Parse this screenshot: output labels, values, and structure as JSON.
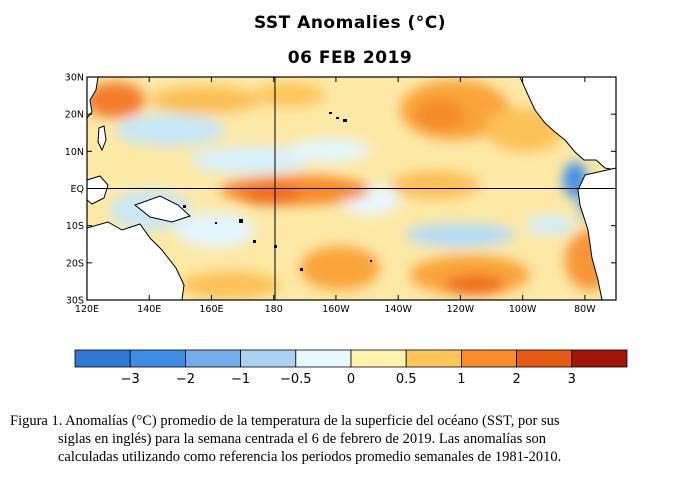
{
  "title": "SST Anomalies (°C)",
  "subtitle": "06 FEB 2019",
  "chart_data": {
    "type": "heatmap",
    "title": "SST Anomalies (°C)",
    "date": "06 FEB 2019",
    "x_ticks": [
      "120E",
      "140E",
      "160E",
      "180",
      "160W",
      "140W",
      "120W",
      "100W",
      "80W"
    ],
    "y_ticks": [
      "30N",
      "20N",
      "10N",
      "EQ",
      "10S",
      "20S",
      "30S"
    ],
    "xlim_lon_east": [
      120,
      290
    ],
    "ylim_lat": [
      -30,
      30
    ],
    "grid_lines": [
      "180",
      "EQ"
    ],
    "colorbar": {
      "tick_labels": [
        "−3",
        "−2",
        "−1",
        "−0.5",
        "0",
        "0.5",
        "1",
        "2",
        "3"
      ],
      "colors": [
        "#2e79d4",
        "#3f8ee6",
        "#72aeea",
        "#a9d3f4",
        "#e8f8ff",
        "#fff2aa",
        "#fdc55a",
        "#f88b2c",
        "#e85a14",
        "#a31409"
      ]
    },
    "anomaly_regions": [
      {
        "region": "NW Pacific near 30N 122E",
        "anomaly": 1.5
      },
      {
        "region": "Central-west Pacific 20N 150E",
        "anomaly": -0.7
      },
      {
        "region": "Equatorial Pacific 170E–160W",
        "anomaly": 1.5
      },
      {
        "region": "NE Pacific 20N 125W",
        "anomaly": 1.5
      },
      {
        "region": "SE Pacific 15S 130W",
        "anomaly": -0.7
      },
      {
        "region": "South Pacific 25S 160W",
        "anomaly": 1.5
      },
      {
        "region": "South Pacific 25S 120W",
        "anomaly": 2.0
      },
      {
        "region": "Off Ecuador 2S 82W",
        "anomaly": -1.5
      },
      {
        "region": "Off Peru 20S 75W",
        "anomaly": 1.5
      }
    ]
  },
  "caption": {
    "line1": "Figura 1. Anomalías (°C) promedio de la temperatura de la superficie del océano (SST, por sus",
    "line2": "siglas en inglés) para la semana centrada el 6 de febrero de 2019. Las anomalías son",
    "line3": "calculadas utilizando como referencia los periodos promedio semanales de 1981-2010."
  }
}
